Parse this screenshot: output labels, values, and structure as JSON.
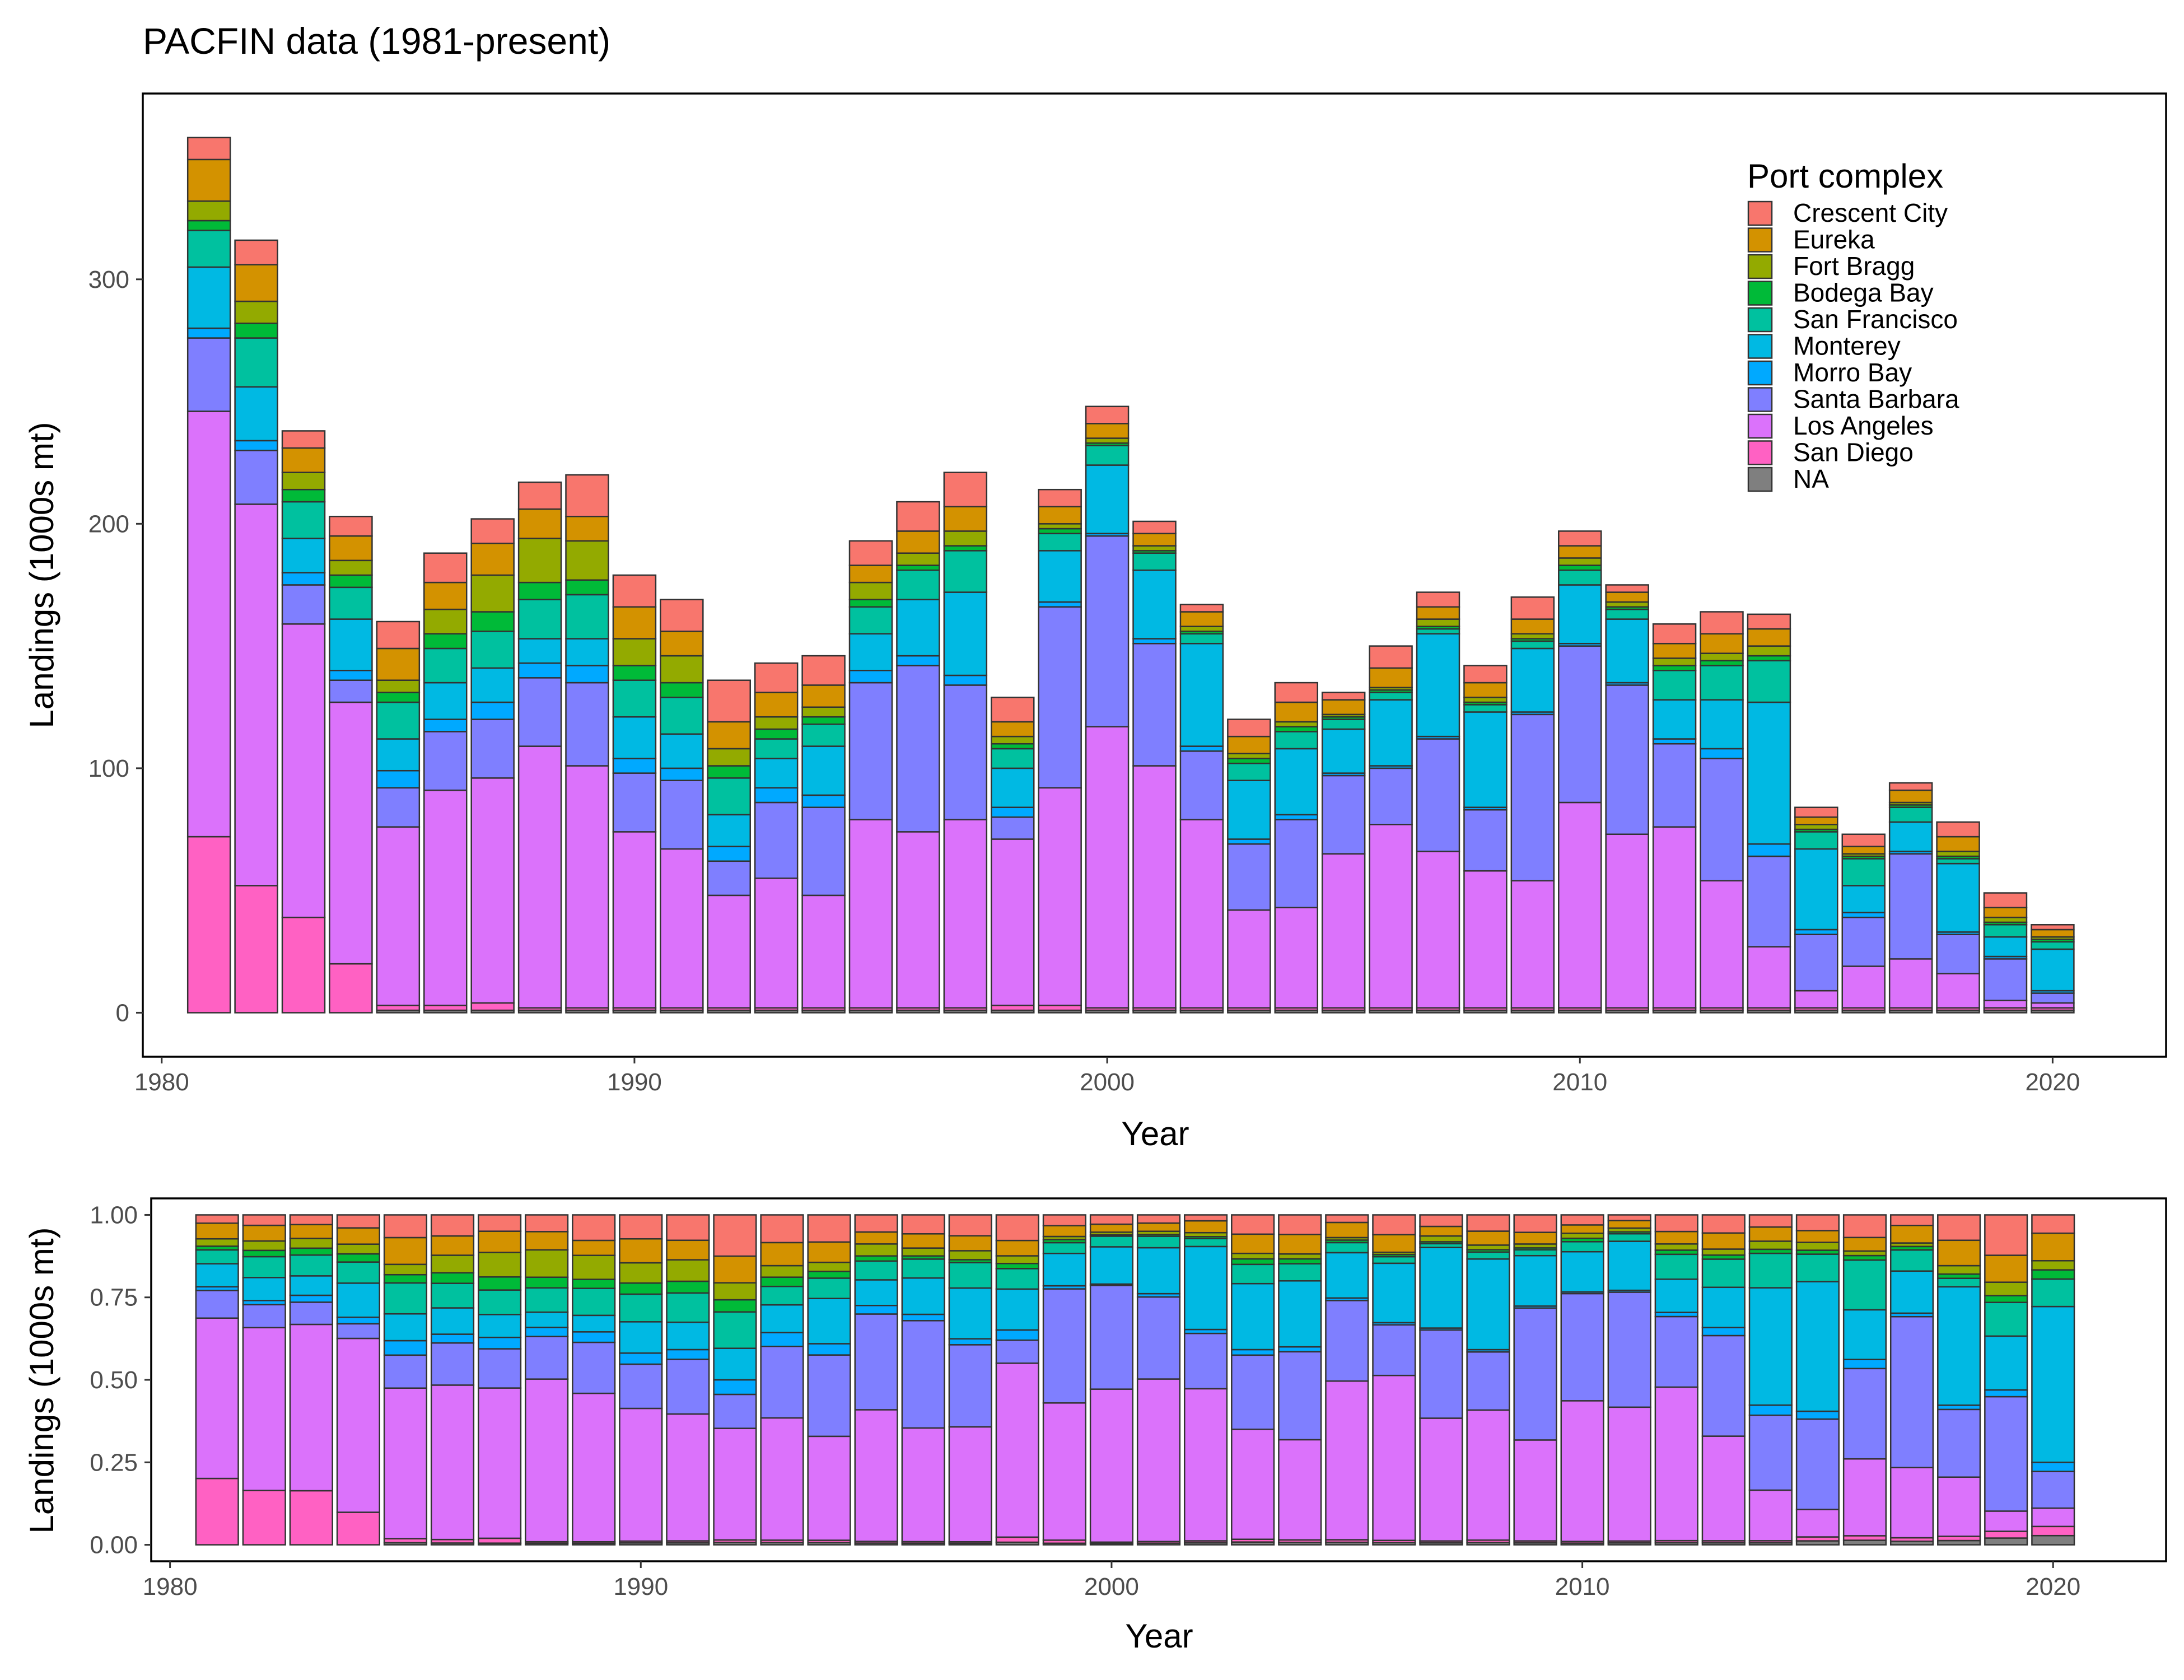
{
  "title": "PACFIN data (1981-present)",
  "legend_title": "Port complex",
  "colors": {
    "Crescent City": "#F8766D",
    "Eureka": "#D39200",
    "Fort Bragg": "#93AA00",
    "Bodega Bay": "#00BA38",
    "San Francisco": "#00C19F",
    "Monterey": "#00B9E3",
    "Morro Bay": "#00A9FF",
    "Santa Barbara": "#7F7FFF",
    "Los Angeles": "#DB72FB",
    "San Diego": "#FF61C3",
    "NA": "#7F7F7F"
  },
  "chart_data": [
    {
      "type": "bar",
      "stacked": true,
      "xlabel": "Year",
      "ylabel": "Landings (1000s mt)",
      "xlim": [
        1979.6,
        2022.4
      ],
      "ylim": [
        -18,
        376
      ],
      "xticks": [
        1980,
        1990,
        2000,
        2010,
        2020
      ],
      "yticks": [
        0,
        100,
        200,
        300
      ],
      "legend_position": "top-right",
      "x": [
        1981,
        1982,
        1983,
        1984,
        1985,
        1986,
        1987,
        1988,
        1989,
        1990,
        1991,
        1992,
        1993,
        1994,
        1995,
        1996,
        1997,
        1998,
        1999,
        2000,
        2001,
        2002,
        2003,
        2004,
        2005,
        2006,
        2007,
        2008,
        2009,
        2010,
        2011,
        2012,
        2013,
        2014,
        2015,
        2016,
        2017,
        2018,
        2019,
        2020
      ],
      "series": [
        {
          "name": "NA",
          "values": [
            0,
            0,
            0,
            0,
            1,
            1,
            1,
            1,
            1,
            1,
            1,
            1,
            1,
            1,
            1,
            1,
            1,
            1,
            1,
            1,
            1,
            1,
            1,
            1,
            1,
            1,
            1,
            1,
            1,
            1,
            1,
            1,
            1,
            1,
            1,
            1,
            1,
            1,
            1,
            1
          ]
        },
        {
          "name": "San Diego",
          "values": [
            72,
            52,
            39,
            20,
            2,
            2,
            3,
            1,
            1,
            1,
            1,
            1,
            1,
            1,
            1,
            1,
            1,
            2,
            2,
            1,
            1,
            1,
            1,
            1,
            1,
            1,
            1,
            1,
            1,
            1,
            1,
            1,
            1,
            1,
            1,
            1,
            1,
            1,
            1,
            1
          ]
        },
        {
          "name": "Los Angeles",
          "values": [
            174,
            156,
            120,
            107,
            73,
            88,
            92,
            107,
            99,
            72,
            65,
            46,
            53,
            46,
            77,
            72,
            77,
            68,
            89,
            115,
            99,
            77,
            40,
            41,
            63,
            75,
            64,
            56,
            52,
            84,
            71,
            74,
            52,
            25,
            7,
            17,
            20,
            14,
            3,
            2
          ]
        },
        {
          "name": "Santa Barbara",
          "values": [
            30,
            22,
            16,
            9,
            16,
            24,
            24,
            28,
            34,
            24,
            28,
            14,
            31,
            36,
            56,
            68,
            55,
            9,
            74,
            78,
            50,
            28,
            27,
            36,
            32,
            23,
            46,
            25,
            68,
            64,
            61,
            34,
            50,
            37,
            23,
            20,
            43,
            16,
            17,
            4
          ]
        },
        {
          "name": "Morro Bay",
          "values": [
            4,
            4,
            5,
            4,
            7,
            5,
            7,
            6,
            7,
            6,
            5,
            6,
            6,
            5,
            5,
            4,
            4,
            4,
            2,
            1,
            2,
            2,
            2,
            2,
            1,
            1,
            1,
            1,
            1,
            1,
            1,
            2,
            4,
            5,
            2,
            2,
            1,
            1,
            1,
            1
          ]
        },
        {
          "name": "Monterey",
          "values": [
            25,
            22,
            14,
            21,
            13,
            15,
            14,
            10,
            11,
            17,
            14,
            13,
            12,
            20,
            15,
            23,
            34,
            16,
            21,
            28,
            28,
            42,
            24,
            27,
            18,
            27,
            42,
            39,
            26,
            24,
            26,
            16,
            20,
            58,
            33,
            11,
            12,
            28,
            8,
            17
          ]
        },
        {
          "name": "San Francisco",
          "values": [
            15,
            20,
            15,
            13,
            15,
            14,
            15,
            16,
            18,
            15,
            15,
            15,
            8,
            9,
            11,
            12,
            17,
            8,
            7,
            8,
            7,
            4,
            7,
            7,
            4,
            3,
            2,
            3,
            3,
            6,
            4,
            12,
            14,
            17,
            7,
            11,
            6,
            2,
            5,
            3
          ]
        },
        {
          "name": "Bodega Bay",
          "values": [
            4,
            6,
            5,
            5,
            4,
            6,
            8,
            7,
            6,
            6,
            6,
            5,
            4,
            3,
            3,
            2,
            2,
            2,
            2,
            1,
            1,
            1,
            2,
            2,
            1,
            1,
            1,
            1,
            1,
            2,
            1,
            2,
            2,
            2,
            1,
            1,
            1,
            1,
            1,
            1
          ]
        },
        {
          "name": "Fort Bragg",
          "values": [
            8,
            9,
            7,
            6,
            5,
            10,
            15,
            18,
            16,
            11,
            11,
            7,
            5,
            4,
            7,
            5,
            6,
            3,
            2,
            2,
            2,
            2,
            2,
            2,
            1,
            1,
            3,
            2,
            2,
            3,
            2,
            3,
            3,
            4,
            2,
            1,
            1,
            2,
            2,
            1
          ]
        },
        {
          "name": "Eureka",
          "values": [
            17,
            15,
            10,
            10,
            13,
            11,
            13,
            12,
            10,
            13,
            10,
            11,
            10,
            9,
            7,
            9,
            10,
            6,
            7,
            6,
            5,
            6,
            7,
            8,
            6,
            8,
            5,
            6,
            6,
            5,
            4,
            6,
            8,
            7,
            3,
            3,
            5,
            6,
            4,
            3
          ]
        },
        {
          "name": "Crescent City",
          "values": [
            9,
            10,
            7,
            8,
            11,
            12,
            10,
            11,
            17,
            13,
            13,
            17,
            12,
            12,
            10,
            12,
            14,
            10,
            7,
            7,
            5,
            3,
            7,
            8,
            3,
            9,
            6,
            7,
            9,
            6,
            3,
            8,
            9,
            6,
            4,
            5,
            3,
            6,
            6,
            2
          ]
        }
      ]
    },
    {
      "type": "bar",
      "stacked": true,
      "normalized": true,
      "xlabel": "Year",
      "ylabel": "Landings (1000s mt)",
      "xlim": [
        1979.6,
        2022.4
      ],
      "ylim": [
        -0.05,
        1.05
      ],
      "xticks": [
        1980,
        1990,
        2000,
        2010,
        2020
      ],
      "yticks": [
        0,
        0.25,
        0.5,
        0.75,
        1
      ],
      "ytick_labels": [
        "0.00",
        "0.25",
        "0.50",
        "0.75",
        "1.00"
      ]
    }
  ]
}
